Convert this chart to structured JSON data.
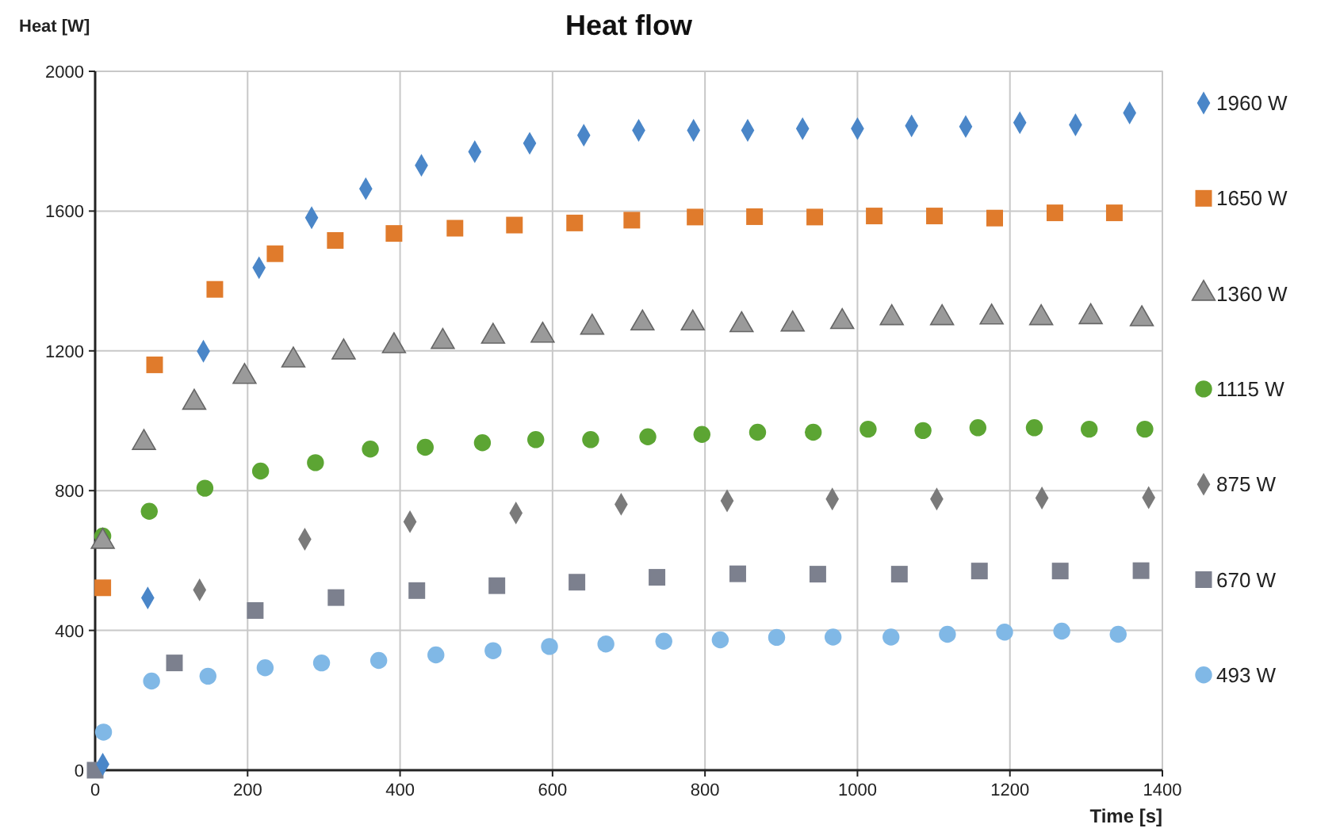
{
  "chart_data": {
    "type": "scatter",
    "title": "Heat flow",
    "xlabel": "Time [s]",
    "ylabel": "Heat [W]",
    "xlim": [
      0,
      1400
    ],
    "xticks": [
      0,
      200,
      400,
      600,
      800,
      1000,
      1200,
      1400
    ],
    "ylim": [
      0,
      2000
    ],
    "yticks": [
      0,
      400,
      800,
      1200,
      1600,
      2000
    ],
    "grid": true,
    "legend": "right",
    "series": [
      {
        "name": "1960 W",
        "color": "#4a86c8",
        "marker": "diamond",
        "x": [
          10,
          69,
          142,
          215,
          284,
          355,
          428,
          498,
          570,
          641,
          713,
          785,
          856,
          928,
          1000,
          1071,
          1142,
          1213,
          1286,
          1357
        ],
        "values": [
          17,
          493,
          1199,
          1438,
          1581,
          1664,
          1731,
          1770,
          1794,
          1817,
          1831,
          1831,
          1831,
          1836,
          1836,
          1844,
          1842,
          1853,
          1847,
          1881
        ]
      },
      {
        "name": "1650 W",
        "color": "#e07b2c",
        "marker": "square",
        "x": [
          10,
          78,
          157,
          236,
          315,
          392,
          472,
          550,
          629,
          704,
          787,
          865,
          944,
          1022,
          1101,
          1180,
          1259,
          1337
        ],
        "values": [
          522,
          1160,
          1376,
          1478,
          1516,
          1536,
          1551,
          1560,
          1566,
          1574,
          1583,
          1584,
          1583,
          1586,
          1586,
          1580,
          1595,
          1595
        ]
      },
      {
        "name": "1360 W",
        "color": "#9a9a9a",
        "marker": "triangle",
        "x": [
          10,
          64,
          130,
          196,
          260,
          326,
          392,
          456,
          522,
          587,
          652,
          718,
          784,
          848,
          915,
          980,
          1045,
          1111,
          1176,
          1241,
          1306,
          1373
        ],
        "values": [
          654,
          937,
          1052,
          1126,
          1173,
          1196,
          1214,
          1226,
          1241,
          1244,
          1267,
          1279,
          1279,
          1274,
          1276,
          1283,
          1294,
          1294,
          1296,
          1294,
          1297,
          1291
        ]
      },
      {
        "name": "1115 W",
        "color": "#5ca533",
        "marker": "circle",
        "x": [
          10,
          71,
          144,
          217,
          289,
          361,
          433,
          508,
          578,
          650,
          725,
          796,
          869,
          942,
          1014,
          1086,
          1158,
          1232,
          1304,
          1377
        ],
        "values": [
          670,
          741,
          807,
          856,
          880,
          919,
          924,
          937,
          946,
          946,
          954,
          961,
          967,
          967,
          976,
          972,
          980,
          980,
          976,
          976
        ]
      },
      {
        "name": "875 W",
        "color": "#7a7a7a",
        "marker": "diamond",
        "x": [
          137,
          275,
          413,
          552,
          690,
          829,
          967,
          1104,
          1242,
          1382
        ],
        "values": [
          516,
          661,
          711,
          736,
          761,
          771,
          776,
          776,
          779,
          780
        ]
      },
      {
        "name": "670 W",
        "color": "#7c808e",
        "marker": "square",
        "x": [
          0,
          104,
          210,
          316,
          422,
          527,
          632,
          737,
          843,
          948,
          1055,
          1160,
          1266,
          1372
        ],
        "values": [
          0,
          307,
          457,
          494,
          514,
          528,
          538,
          552,
          562,
          561,
          561,
          570,
          570,
          571
        ]
      },
      {
        "name": "493 W",
        "color": "#80b8e6",
        "marker": "circle",
        "x": [
          11,
          74,
          148,
          223,
          297,
          372,
          447,
          522,
          596,
          670,
          746,
          820,
          894,
          968,
          1044,
          1118,
          1193,
          1268,
          1342
        ],
        "values": [
          109,
          255,
          269,
          293,
          307,
          314,
          330,
          342,
          354,
          361,
          369,
          373,
          380,
          381,
          381,
          389,
          395,
          398,
          389
        ]
      }
    ]
  }
}
